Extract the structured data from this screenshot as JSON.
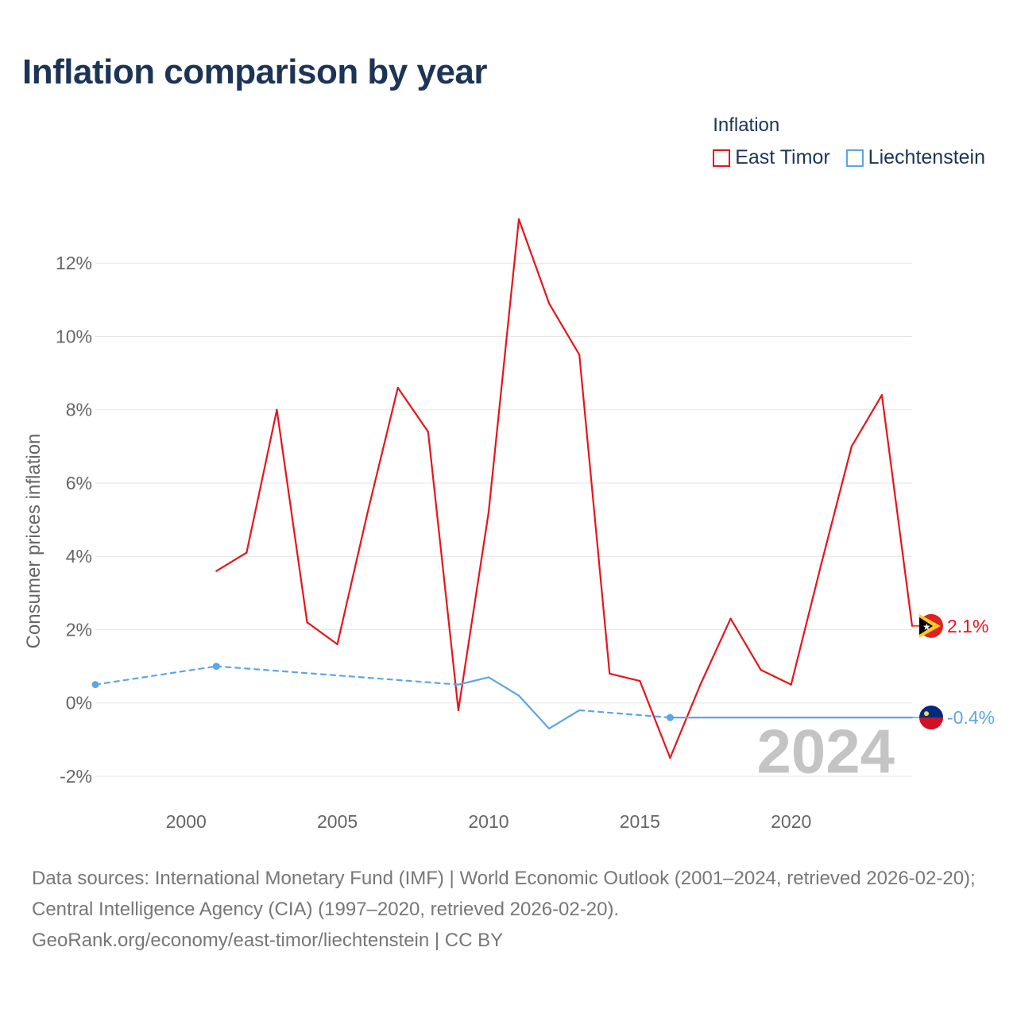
{
  "title": "Inflation comparison by year",
  "legend": {
    "title": "Inflation",
    "items": [
      {
        "label": "East Timor",
        "color": "#e8141b"
      },
      {
        "label": "Liechtenstein",
        "color": "#5ba6e6"
      }
    ]
  },
  "chart_data": {
    "type": "line",
    "title": "Inflation comparison by year",
    "xlabel": "",
    "ylabel": "Consumer prices inflation",
    "xlim": [
      1997,
      2024
    ],
    "ylim": [
      -2.5,
      13.5
    ],
    "yticks": [
      -2,
      0,
      2,
      4,
      6,
      8,
      10,
      12
    ],
    "ytick_labels": [
      "-2%",
      "0%",
      "2%",
      "4%",
      "6%",
      "8%",
      "10%",
      "12%"
    ],
    "xticks": [
      2000,
      2005,
      2010,
      2015,
      2020
    ],
    "xtick_labels": [
      "2000",
      "2005",
      "2010",
      "2015",
      "2020"
    ],
    "watermark_year": "2024",
    "series": [
      {
        "name": "East Timor",
        "color": "#e8141b",
        "end_label": "2.1%",
        "points": [
          [
            2001,
            3.6
          ],
          [
            2002,
            4.1
          ],
          [
            2003,
            8.0
          ],
          [
            2004,
            2.2
          ],
          [
            2005,
            1.6
          ],
          [
            2006,
            5.2
          ],
          [
            2007,
            8.6
          ],
          [
            2008,
            7.4
          ],
          [
            2009,
            -0.2
          ],
          [
            2010,
            5.2
          ],
          [
            2011,
            13.2
          ],
          [
            2012,
            10.9
          ],
          [
            2013,
            9.5
          ],
          [
            2014,
            0.8
          ],
          [
            2015,
            0.6
          ],
          [
            2016,
            -1.5
          ],
          [
            2017,
            0.5
          ],
          [
            2018,
            2.3
          ],
          [
            2019,
            0.9
          ],
          [
            2020,
            0.5
          ],
          [
            2021,
            3.8
          ],
          [
            2022,
            7.0
          ],
          [
            2023,
            8.4
          ],
          [
            2024,
            2.1
          ]
        ]
      },
      {
        "name": "Liechtenstein",
        "color": "#5ba6e6",
        "end_label": "-0.4%",
        "points": [
          [
            1997,
            0.5
          ],
          [
            2001,
            1.0
          ],
          [
            2009,
            0.5
          ],
          [
            2010,
            0.7
          ],
          [
            2011,
            0.2
          ],
          [
            2012,
            -0.7
          ],
          [
            2013,
            -0.2
          ],
          [
            2016,
            -0.4
          ],
          [
            2020,
            -0.4
          ],
          [
            2024,
            -0.4
          ]
        ],
        "dashed_segments": [
          [
            1997,
            2009
          ],
          [
            2013,
            2018
          ]
        ]
      }
    ]
  },
  "source": {
    "line1": "Data sources: International Monetary Fund (IMF) | World Economic Outlook (2001–2024, retrieved 2026-02-20); Central Intelligence Agency (CIA) (1997–2020, retrieved 2026-02-20).",
    "line2": "GeoRank.org/economy/east-timor/liechtenstein | CC BY"
  }
}
